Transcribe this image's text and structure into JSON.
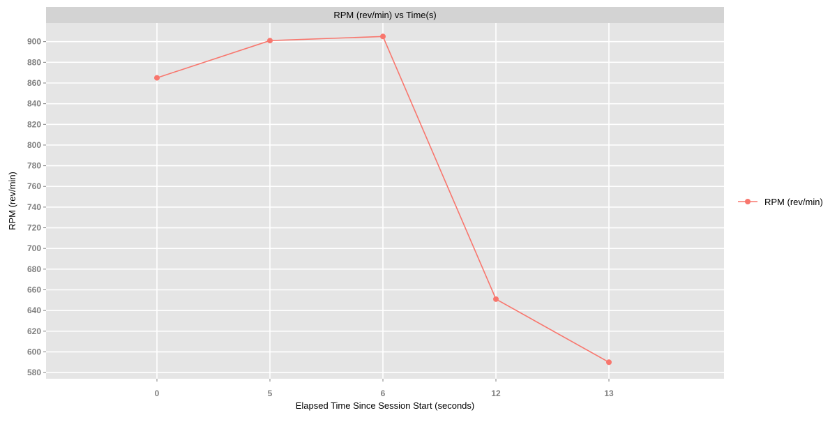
{
  "chart_data": {
    "type": "line",
    "title": "RPM (rev/min) vs Time(s)",
    "xlabel": "Elapsed Time Since Session Start (seconds)",
    "ylabel": "RPM (rev/min)",
    "categories": [
      "0",
      "5",
      "6",
      "12",
      "13"
    ],
    "series": [
      {
        "name": "RPM (rev/min)",
        "values": [
          865,
          901,
          905,
          651,
          590
        ],
        "color": "#f8766d"
      }
    ],
    "ylim": [
      574,
      918
    ],
    "yticks": [
      580,
      600,
      620,
      640,
      660,
      680,
      700,
      720,
      740,
      760,
      780,
      800,
      820,
      840,
      860,
      880,
      900
    ],
    "grid": true,
    "legend": "right",
    "colors": {
      "panel": "#e5e5e5",
      "strip": "#d3d3d3",
      "grid": "#ffffff",
      "tick_text": "#7f7f7f"
    }
  }
}
